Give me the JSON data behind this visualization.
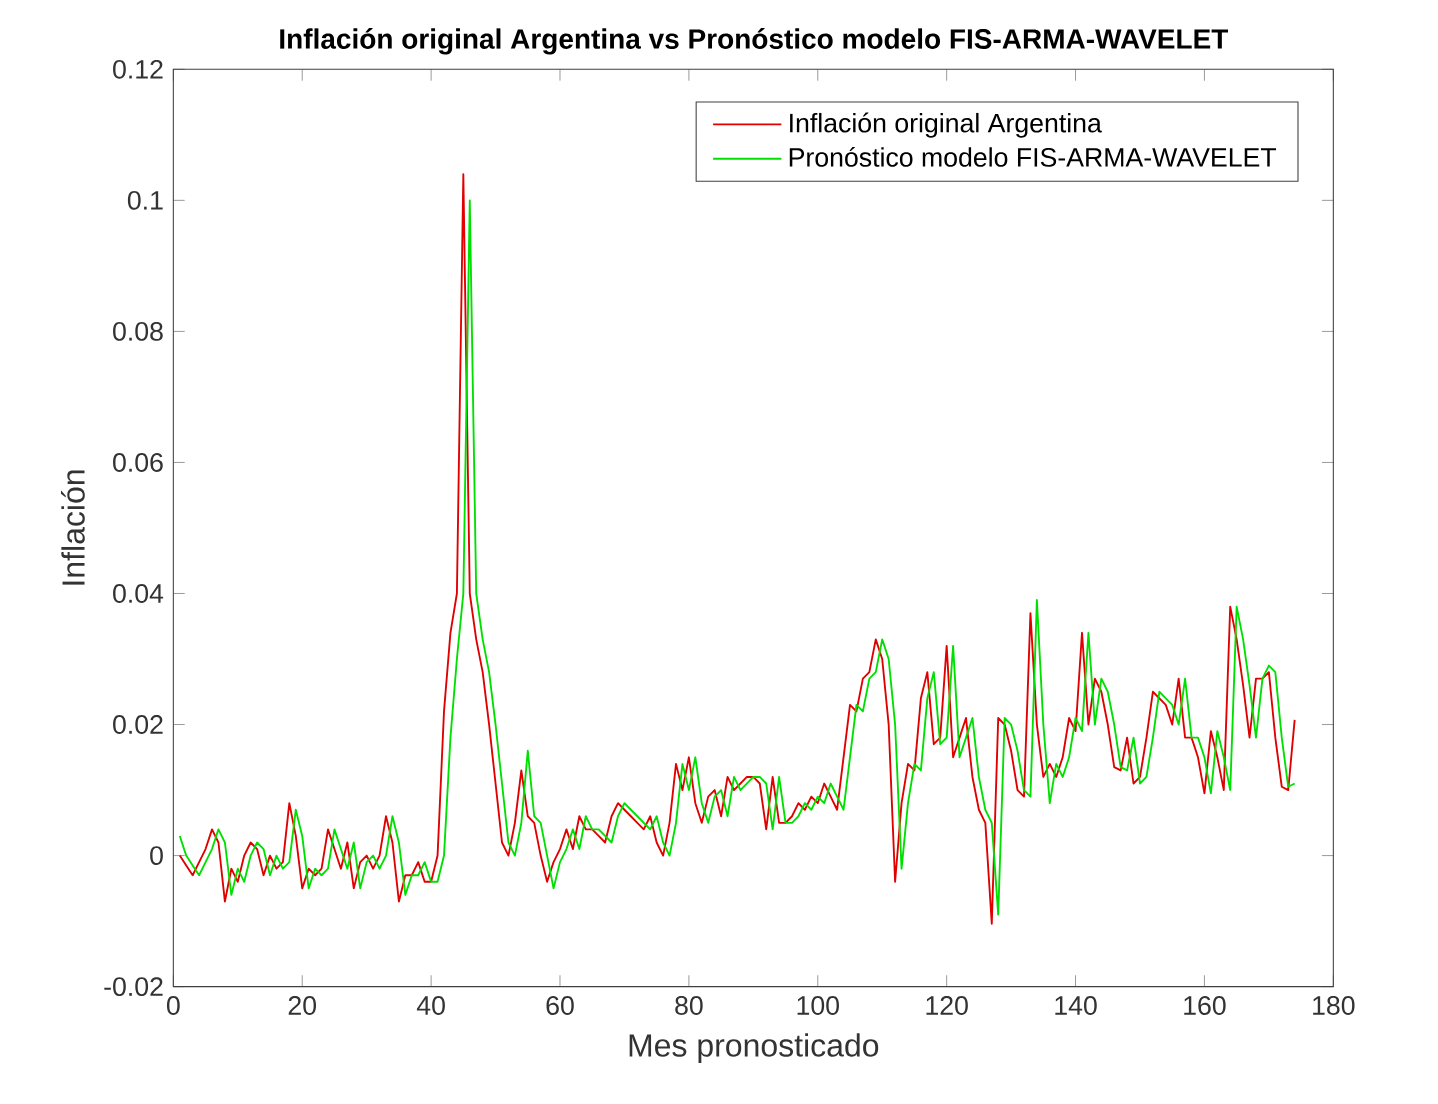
{
  "chart_data": {
    "type": "line",
    "title": "Inflación original Argentina vs Pronóstico modelo FIS-ARMA-WAVELET",
    "xlabel": "Mes pronosticado",
    "ylabel": "Inflación",
    "x": [
      1,
      2,
      3,
      4,
      5,
      6,
      7,
      8,
      9,
      10,
      11,
      12,
      13,
      14,
      15,
      16,
      17,
      18,
      19,
      20,
      21,
      22,
      23,
      24,
      25,
      26,
      27,
      28,
      29,
      30,
      31,
      32,
      33,
      34,
      35,
      36,
      37,
      38,
      39,
      40,
      41,
      42,
      43,
      44,
      45,
      46,
      47,
      48,
      49,
      50,
      51,
      52,
      53,
      54,
      55,
      56,
      57,
      58,
      59,
      60,
      61,
      62,
      63,
      64,
      65,
      66,
      67,
      68,
      69,
      70,
      71,
      72,
      73,
      74,
      75,
      76,
      77,
      78,
      79,
      80,
      81,
      82,
      83,
      84,
      85,
      86,
      87,
      88,
      89,
      90,
      91,
      92,
      93,
      94,
      95,
      96,
      97,
      98,
      99,
      100,
      101,
      102,
      103,
      104,
      105,
      106,
      107,
      108,
      109,
      110,
      111,
      112,
      113,
      114,
      115,
      116,
      117,
      118,
      119,
      120,
      121,
      122,
      123,
      124,
      125,
      126,
      127,
      128,
      129,
      130,
      131,
      132,
      133,
      134,
      135,
      136,
      137,
      138,
      139,
      140,
      141,
      142,
      143,
      144,
      145,
      146,
      147,
      148,
      149,
      150,
      151,
      152,
      153,
      154,
      155,
      156,
      157,
      158,
      159,
      160,
      161,
      162,
      163,
      164,
      165,
      166,
      167,
      168,
      169,
      170,
      171,
      172,
      173,
      174
    ],
    "series": [
      {
        "name": "Inflación original Argentina",
        "color": "#e00000",
        "values": [
          0,
          -0.0015,
          -0.003,
          -0.001,
          0.001,
          0.004,
          0.002,
          -0.007,
          -0.002,
          -0.004,
          0,
          0.002,
          0.001,
          -0.003,
          0,
          -0.002,
          -0.001,
          0.008,
          0.003,
          -0.005,
          -0.002,
          -0.003,
          -0.002,
          0.004,
          0.001,
          -0.002,
          0.002,
          -0.005,
          -0.001,
          0,
          -0.002,
          0,
          0.006,
          0.002,
          -0.007,
          -0.003,
          -0.003,
          -0.001,
          -0.004,
          -0.004,
          0,
          0.022,
          0.034,
          0.04,
          0.104,
          0.04,
          0.033,
          0.028,
          0.02,
          0.011,
          0.002,
          0,
          0.005,
          0.013,
          0.006,
          0.005,
          0,
          -0.004,
          -0.001,
          0.001,
          0.004,
          0.001,
          0.006,
          0.004,
          0.004,
          0.003,
          0.002,
          0.006,
          0.008,
          0.007,
          0.006,
          0.005,
          0.004,
          0.006,
          0.002,
          0,
          0.005,
          0.014,
          0.01,
          0.015,
          0.008,
          0.005,
          0.009,
          0.01,
          0.006,
          0.012,
          0.01,
          0.011,
          0.012,
          0.012,
          0.011,
          0.004,
          0.012,
          0.005,
          0.005,
          0.006,
          0.008,
          0.007,
          0.009,
          0.008,
          0.011,
          0.009,
          0.007,
          0.015,
          0.023,
          0.022,
          0.027,
          0.028,
          0.033,
          0.03,
          0.02,
          -0.004,
          0.008,
          0.014,
          0.013,
          0.024,
          0.028,
          0.017,
          0.018,
          0.032,
          0.015,
          0.018,
          0.021,
          0.012,
          0.007,
          0.005,
          -0.0104,
          0.021,
          0.02,
          0.016,
          0.01,
          0.009,
          0.037,
          0.02,
          0.012,
          0.014,
          0.012,
          0.015,
          0.021,
          0.019,
          0.034,
          0.02,
          0.027,
          0.025,
          0.02,
          0.0135,
          0.013,
          0.018,
          0.011,
          0.012,
          0.018,
          0.025,
          0.024,
          0.023,
          0.02,
          0.027,
          0.018,
          0.018,
          0.015,
          0.0095,
          0.019,
          0.015,
          0.01,
          0.038,
          0.033,
          0.026,
          0.018,
          0.027,
          0.027,
          0.028,
          0.018,
          0.0105,
          0.01,
          0.0207
        ]
      },
      {
        "name": "Pronóstico modelo FIS-ARMA-WAVELET",
        "color": "#00e000",
        "values": [
          0.003,
          0,
          -0.0015,
          -0.003,
          -0.001,
          0.001,
          0.004,
          0.002,
          -0.006,
          -0.002,
          -0.004,
          0,
          0.002,
          0.001,
          -0.003,
          0,
          -0.002,
          -0.001,
          0.007,
          0.003,
          -0.005,
          -0.002,
          -0.003,
          -0.002,
          0.004,
          0.001,
          -0.002,
          0.002,
          -0.005,
          -0.001,
          0,
          -0.002,
          0,
          0.006,
          0.002,
          -0.006,
          -0.003,
          -0.003,
          -0.001,
          -0.004,
          -0.004,
          0,
          0.018,
          0.03,
          0.04,
          0.1,
          0.04,
          0.033,
          0.028,
          0.02,
          0.011,
          0.002,
          0,
          0.005,
          0.016,
          0.006,
          0.005,
          0,
          -0.005,
          -0.001,
          0.001,
          0.004,
          0.001,
          0.006,
          0.004,
          0.004,
          0.003,
          0.002,
          0.006,
          0.008,
          0.007,
          0.006,
          0.005,
          0.004,
          0.006,
          0.002,
          0,
          0.005,
          0.014,
          0.01,
          0.015,
          0.008,
          0.005,
          0.009,
          0.01,
          0.006,
          0.012,
          0.01,
          0.011,
          0.012,
          0.012,
          0.011,
          0.004,
          0.012,
          0.005,
          0.005,
          0.006,
          0.008,
          0.007,
          0.009,
          0.008,
          0.011,
          0.009,
          0.007,
          0.015,
          0.023,
          0.022,
          0.027,
          0.028,
          0.033,
          0.03,
          0.02,
          -0.002,
          0.008,
          0.014,
          0.013,
          0.024,
          0.028,
          0.017,
          0.018,
          0.032,
          0.015,
          0.018,
          0.021,
          0.012,
          0.007,
          0.005,
          -0.009,
          0.021,
          0.02,
          0.016,
          0.01,
          0.009,
          0.039,
          0.02,
          0.008,
          0.014,
          0.012,
          0.015,
          0.021,
          0.019,
          0.034,
          0.02,
          0.027,
          0.025,
          0.02,
          0.0135,
          0.013,
          0.018,
          0.011,
          0.012,
          0.018,
          0.025,
          0.024,
          0.023,
          0.02,
          0.027,
          0.018,
          0.018,
          0.015,
          0.0095,
          0.019,
          0.015,
          0.01,
          0.038,
          0.033,
          0.026,
          0.018,
          0.027,
          0.029,
          0.028,
          0.018,
          0.0105,
          0.011
        ]
      }
    ],
    "xlim": [
      0,
      180
    ],
    "ylim": [
      -0.02,
      0.12
    ],
    "xticks": [
      0,
      20,
      40,
      60,
      80,
      100,
      120,
      140,
      160,
      180
    ],
    "yticks": [
      -0.02,
      0,
      0.02,
      0.04,
      0.06,
      0.08,
      0.1,
      0.12
    ],
    "legend": "top right",
    "grid": false
  }
}
